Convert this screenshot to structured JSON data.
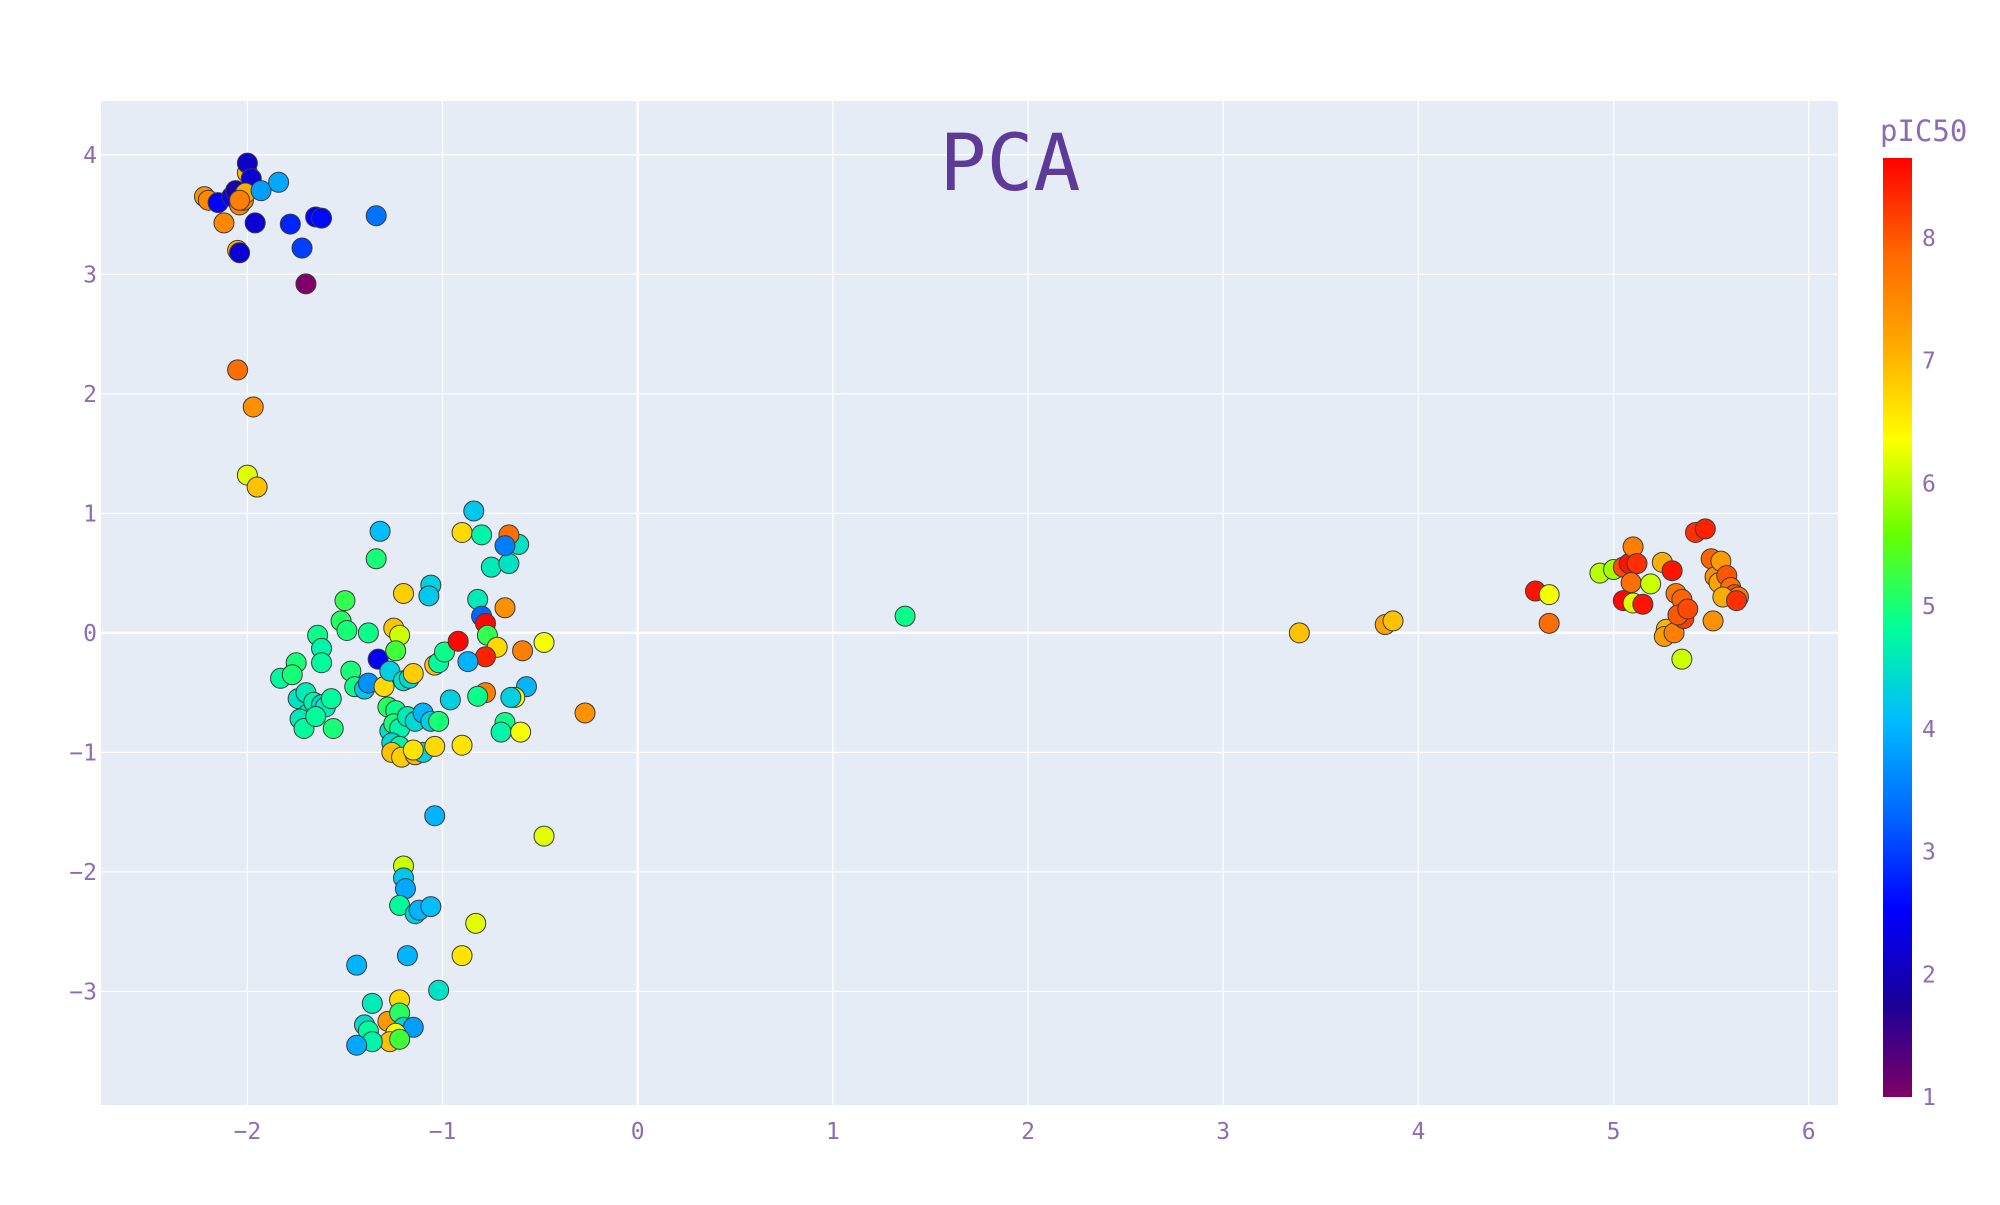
{
  "chart_data": {
    "type": "scatter",
    "title": "PCA",
    "xlabel": "",
    "ylabel": "",
    "xlim": [
      -2.75,
      6.15
    ],
    "ylim": [
      -3.95,
      4.45
    ],
    "x_ticks": [
      -2,
      -1,
      0,
      1,
      2,
      3,
      4,
      5,
      6
    ],
    "x_tick_labels": [
      "−2",
      "−1",
      "0",
      "1",
      "2",
      "3",
      "4",
      "5",
      "6"
    ],
    "y_ticks": [
      -3,
      -2,
      -1,
      0,
      1,
      2,
      3,
      4
    ],
    "y_tick_labels": [
      "−3",
      "−2",
      "−1",
      "0",
      "1",
      "2",
      "3",
      "4"
    ],
    "grid": true,
    "colorbar": {
      "title": "pIC50",
      "range": [
        1,
        8.65
      ],
      "ticks": [
        1,
        2,
        3,
        4,
        5,
        6,
        7,
        8
      ],
      "tick_labels": [
        "1",
        "2",
        "3",
        "4",
        "5",
        "6",
        "7",
        "8"
      ],
      "colorscale": [
        "#7f0066",
        "#1a0099",
        "#0000ff",
        "#0066ff",
        "#00bbff",
        "#00ff99",
        "#66ff00",
        "#ffff00",
        "#ffaa00",
        "#ff6600",
        "#ff0000"
      ]
    },
    "series": [
      {
        "points": [
          {
            "x": -2.22,
            "y": 3.65,
            "c": 7.4
          },
          {
            "x": -2.2,
            "y": 3.62,
            "c": 7.5
          },
          {
            "x": -2.15,
            "y": 3.6,
            "c": 2.5
          },
          {
            "x": -2.12,
            "y": 3.43,
            "c": 7.5
          },
          {
            "x": -2.08,
            "y": 3.65,
            "c": 2.3
          },
          {
            "x": -2.06,
            "y": 3.7,
            "c": 1.9
          },
          {
            "x": -2.04,
            "y": 3.58,
            "c": 7.6
          },
          {
            "x": -2.02,
            "y": 3.62,
            "c": 7.5
          },
          {
            "x": -2.0,
            "y": 3.85,
            "c": 7.0
          },
          {
            "x": -2.0,
            "y": 3.93,
            "c": 2.1
          },
          {
            "x": -1.98,
            "y": 3.8,
            "c": 2.2
          },
          {
            "x": -2.01,
            "y": 3.68,
            "c": 7.1
          },
          {
            "x": -1.96,
            "y": 3.43,
            "c": 2.2
          },
          {
            "x": -1.93,
            "y": 3.7,
            "c": 3.8
          },
          {
            "x": -1.84,
            "y": 3.77,
            "c": 3.9
          },
          {
            "x": -1.78,
            "y": 3.42,
            "c": 2.8
          },
          {
            "x": -1.72,
            "y": 3.22,
            "c": 3.0
          },
          {
            "x": -1.65,
            "y": 3.48,
            "c": 2.5
          },
          {
            "x": -1.62,
            "y": 3.47,
            "c": 2.6
          },
          {
            "x": -2.05,
            "y": 3.2,
            "c": 7.1
          },
          {
            "x": -2.04,
            "y": 3.18,
            "c": 2.2
          },
          {
            "x": -1.34,
            "y": 3.49,
            "c": 3.4
          },
          {
            "x": -1.7,
            "y": 2.92,
            "c": 1.0
          },
          {
            "x": -2.04,
            "y": 3.62,
            "c": 7.6
          },
          {
            "x": -2.05,
            "y": 2.2,
            "c": 7.8
          },
          {
            "x": -1.97,
            "y": 1.89,
            "c": 7.4
          },
          {
            "x": -2.0,
            "y": 1.32,
            "c": 6.2
          },
          {
            "x": -1.95,
            "y": 1.22,
            "c": 6.9
          },
          {
            "x": -1.32,
            "y": 0.85,
            "c": 4.1
          },
          {
            "x": -1.34,
            "y": 0.62,
            "c": 5.0
          },
          {
            "x": -1.5,
            "y": 0.27,
            "c": 5.2
          },
          {
            "x": -1.52,
            "y": 0.1,
            "c": 5.1
          },
          {
            "x": -1.49,
            "y": 0.02,
            "c": 5.0
          },
          {
            "x": -1.64,
            "y": -0.02,
            "c": 4.9
          },
          {
            "x": -1.38,
            "y": 0.0,
            "c": 4.9
          },
          {
            "x": -1.2,
            "y": 0.33,
            "c": 6.8
          },
          {
            "x": -1.06,
            "y": 0.4,
            "c": 4.3
          },
          {
            "x": -1.07,
            "y": 0.31,
            "c": 4.2
          },
          {
            "x": -1.62,
            "y": -0.13,
            "c": 4.7
          },
          {
            "x": -1.62,
            "y": -0.25,
            "c": 4.8
          },
          {
            "x": -1.75,
            "y": -0.25,
            "c": 5.0
          },
          {
            "x": -1.83,
            "y": -0.38,
            "c": 4.8
          },
          {
            "x": -1.77,
            "y": -0.35,
            "c": 5.0
          },
          {
            "x": -1.74,
            "y": -0.55,
            "c": 4.5
          },
          {
            "x": -1.7,
            "y": -0.5,
            "c": 4.6
          },
          {
            "x": -1.69,
            "y": -0.68,
            "c": 4.7
          },
          {
            "x": -1.73,
            "y": -0.72,
            "c": 4.6
          },
          {
            "x": -1.71,
            "y": -0.8,
            "c": 4.8
          },
          {
            "x": -1.66,
            "y": -0.58,
            "c": 4.7
          },
          {
            "x": -1.62,
            "y": -0.6,
            "c": 4.4
          },
          {
            "x": -1.6,
            "y": -0.62,
            "c": 4.6
          },
          {
            "x": -1.57,
            "y": -0.55,
            "c": 4.8
          },
          {
            "x": -1.56,
            "y": -0.8,
            "c": 5.0
          },
          {
            "x": -1.65,
            "y": -0.7,
            "c": 4.8
          },
          {
            "x": -1.47,
            "y": -0.32,
            "c": 5.0
          },
          {
            "x": -1.45,
            "y": -0.45,
            "c": 4.9
          },
          {
            "x": -1.4,
            "y": -0.47,
            "c": 4.2
          },
          {
            "x": -1.38,
            "y": -0.42,
            "c": 3.7
          },
          {
            "x": -1.33,
            "y": -0.22,
            "c": 2.4
          },
          {
            "x": -1.3,
            "y": -0.45,
            "c": 6.7
          },
          {
            "x": -1.27,
            "y": -0.32,
            "c": 4.3
          },
          {
            "x": -1.25,
            "y": 0.04,
            "c": 6.9
          },
          {
            "x": -1.22,
            "y": -0.02,
            "c": 6.1
          },
          {
            "x": -1.24,
            "y": -0.15,
            "c": 5.3
          },
          {
            "x": -1.2,
            "y": -0.4,
            "c": 4.5
          },
          {
            "x": -1.17,
            "y": -0.38,
            "c": 4.4
          },
          {
            "x": -1.15,
            "y": -0.34,
            "c": 6.8
          },
          {
            "x": -1.28,
            "y": -0.62,
            "c": 5.1
          },
          {
            "x": -1.24,
            "y": -0.65,
            "c": 4.9
          },
          {
            "x": -1.27,
            "y": -0.82,
            "c": 4.5
          },
          {
            "x": -1.25,
            "y": -0.76,
            "c": 5.0
          },
          {
            "x": -1.22,
            "y": -0.8,
            "c": 4.7
          },
          {
            "x": -1.18,
            "y": -0.7,
            "c": 4.6
          },
          {
            "x": -1.14,
            "y": -0.74,
            "c": 4.4
          },
          {
            "x": -1.1,
            "y": -0.67,
            "c": 4.0
          },
          {
            "x": -1.06,
            "y": -0.74,
            "c": 4.3
          },
          {
            "x": -1.02,
            "y": -0.74,
            "c": 5.0
          },
          {
            "x": -1.26,
            "y": -0.92,
            "c": 4.4
          },
          {
            "x": -1.22,
            "y": -0.95,
            "c": 4.7
          },
          {
            "x": -1.26,
            "y": -1.0,
            "c": 6.9
          },
          {
            "x": -1.21,
            "y": -1.04,
            "c": 6.8
          },
          {
            "x": -1.14,
            "y": -1.02,
            "c": 7.0
          },
          {
            "x": -1.1,
            "y": -1.0,
            "c": 4.3
          },
          {
            "x": -1.15,
            "y": -0.98,
            "c": 6.6
          },
          {
            "x": -1.04,
            "y": -0.95,
            "c": 6.7
          },
          {
            "x": -1.04,
            "y": -0.27,
            "c": 6.9
          },
          {
            "x": -1.02,
            "y": -0.25,
            "c": 4.8
          },
          {
            "x": -0.99,
            "y": -0.16,
            "c": 4.9
          },
          {
            "x": -0.96,
            "y": -0.56,
            "c": 4.3
          },
          {
            "x": -0.9,
            "y": 0.84,
            "c": 6.7
          },
          {
            "x": -0.84,
            "y": 1.02,
            "c": 4.2
          },
          {
            "x": -0.8,
            "y": 0.82,
            "c": 4.7
          },
          {
            "x": -0.75,
            "y": 0.55,
            "c": 4.6
          },
          {
            "x": -0.66,
            "y": 0.58,
            "c": 4.5
          },
          {
            "x": -0.61,
            "y": 0.74,
            "c": 4.5
          },
          {
            "x": -0.66,
            "y": 0.82,
            "c": 7.8
          },
          {
            "x": -0.68,
            "y": 0.73,
            "c": 3.5
          },
          {
            "x": -0.82,
            "y": 0.28,
            "c": 4.6
          },
          {
            "x": -0.8,
            "y": 0.14,
            "c": 3.3
          },
          {
            "x": -0.78,
            "y": 0.08,
            "c": 8.6
          },
          {
            "x": -0.92,
            "y": -0.07,
            "c": 8.6
          },
          {
            "x": -0.77,
            "y": -0.02,
            "c": 5.2
          },
          {
            "x": -0.72,
            "y": -0.12,
            "c": 6.7
          },
          {
            "x": -0.78,
            "y": -0.2,
            "c": 8.4
          },
          {
            "x": -0.87,
            "y": -0.24,
            "c": 4.0
          },
          {
            "x": -0.68,
            "y": 0.21,
            "c": 7.4
          },
          {
            "x": -0.59,
            "y": -0.15,
            "c": 7.6
          },
          {
            "x": -0.48,
            "y": -0.08,
            "c": 6.3
          },
          {
            "x": -0.57,
            "y": -0.45,
            "c": 4.0
          },
          {
            "x": -0.78,
            "y": -0.5,
            "c": 7.6
          },
          {
            "x": -0.82,
            "y": -0.53,
            "c": 4.9
          },
          {
            "x": -0.63,
            "y": -0.54,
            "c": 6.3
          },
          {
            "x": -0.65,
            "y": -0.54,
            "c": 4.3
          },
          {
            "x": -0.68,
            "y": -0.75,
            "c": 4.9
          },
          {
            "x": -0.7,
            "y": -0.83,
            "c": 4.7
          },
          {
            "x": -0.6,
            "y": -0.83,
            "c": 6.3
          },
          {
            "x": -0.9,
            "y": -0.94,
            "c": 6.6
          },
          {
            "x": -0.27,
            "y": -0.67,
            "c": 7.4
          },
          {
            "x": -1.04,
            "y": -1.53,
            "c": 4.0
          },
          {
            "x": -0.48,
            "y": -1.7,
            "c": 6.2
          },
          {
            "x": -1.2,
            "y": -1.95,
            "c": 6.1
          },
          {
            "x": -1.2,
            "y": -2.05,
            "c": 4.2
          },
          {
            "x": -1.19,
            "y": -2.14,
            "c": 3.9
          },
          {
            "x": -1.22,
            "y": -2.28,
            "c": 4.8
          },
          {
            "x": -1.14,
            "y": -2.35,
            "c": 4.3
          },
          {
            "x": -1.12,
            "y": -2.32,
            "c": 4.0
          },
          {
            "x": -1.06,
            "y": -2.29,
            "c": 4.1
          },
          {
            "x": -0.83,
            "y": -2.43,
            "c": 6.2
          },
          {
            "x": -1.18,
            "y": -2.7,
            "c": 4.0
          },
          {
            "x": -1.44,
            "y": -2.78,
            "c": 4.0
          },
          {
            "x": -0.9,
            "y": -2.7,
            "c": 6.6
          },
          {
            "x": -1.02,
            "y": -2.99,
            "c": 4.5
          },
          {
            "x": -1.22,
            "y": -3.07,
            "c": 6.7
          },
          {
            "x": -1.36,
            "y": -3.1,
            "c": 4.6
          },
          {
            "x": -1.4,
            "y": -3.28,
            "c": 4.4
          },
          {
            "x": -1.38,
            "y": -3.33,
            "c": 4.8
          },
          {
            "x": -1.28,
            "y": -3.25,
            "c": 7.3
          },
          {
            "x": -1.22,
            "y": -3.18,
            "c": 5.1
          },
          {
            "x": -1.2,
            "y": -3.3,
            "c": 4.4
          },
          {
            "x": -1.15,
            "y": -3.3,
            "c": 3.8
          },
          {
            "x": -1.24,
            "y": -3.35,
            "c": 6.4
          },
          {
            "x": -1.27,
            "y": -3.42,
            "c": 6.9
          },
          {
            "x": -1.22,
            "y": -3.4,
            "c": 5.3
          },
          {
            "x": -1.36,
            "y": -3.42,
            "c": 4.7
          },
          {
            "x": -1.44,
            "y": -3.45,
            "c": 3.9
          },
          {
            "x": 1.37,
            "y": 0.14,
            "c": 4.9
          },
          {
            "x": 3.39,
            "y": 0.0,
            "c": 6.9
          },
          {
            "x": 3.83,
            "y": 0.07,
            "c": 7.2
          },
          {
            "x": 3.87,
            "y": 0.1,
            "c": 6.9
          },
          {
            "x": 4.6,
            "y": 0.35,
            "c": 8.5
          },
          {
            "x": 4.67,
            "y": 0.32,
            "c": 6.3
          },
          {
            "x": 4.67,
            "y": 0.08,
            "c": 7.8
          },
          {
            "x": 4.93,
            "y": 0.5,
            "c": 6.0
          },
          {
            "x": 5.0,
            "y": 0.53,
            "c": 5.9
          },
          {
            "x": 5.05,
            "y": 0.55,
            "c": 8.1
          },
          {
            "x": 5.08,
            "y": 0.58,
            "c": 8.5
          },
          {
            "x": 5.1,
            "y": 0.72,
            "c": 7.6
          },
          {
            "x": 5.12,
            "y": 0.58,
            "c": 8.3
          },
          {
            "x": 5.09,
            "y": 0.42,
            "c": 7.8
          },
          {
            "x": 5.05,
            "y": 0.27,
            "c": 8.6
          },
          {
            "x": 5.1,
            "y": 0.25,
            "c": 6.2
          },
          {
            "x": 5.15,
            "y": 0.24,
            "c": 8.5
          },
          {
            "x": 5.19,
            "y": 0.41,
            "c": 6.1
          },
          {
            "x": 5.25,
            "y": 0.59,
            "c": 7.1
          },
          {
            "x": 5.3,
            "y": 0.52,
            "c": 8.5
          },
          {
            "x": 5.27,
            "y": 0.03,
            "c": 7.0
          },
          {
            "x": 5.26,
            "y": -0.03,
            "c": 7.3
          },
          {
            "x": 5.31,
            "y": 0.0,
            "c": 7.6
          },
          {
            "x": 5.32,
            "y": 0.33,
            "c": 7.7
          },
          {
            "x": 5.35,
            "y": 0.28,
            "c": 7.9
          },
          {
            "x": 5.36,
            "y": 0.12,
            "c": 8.2
          },
          {
            "x": 5.33,
            "y": 0.15,
            "c": 8.0
          },
          {
            "x": 5.38,
            "y": 0.2,
            "c": 8.1
          },
          {
            "x": 5.35,
            "y": -0.22,
            "c": 6.1
          },
          {
            "x": 5.42,
            "y": 0.84,
            "c": 8.3
          },
          {
            "x": 5.47,
            "y": 0.87,
            "c": 8.4
          },
          {
            "x": 5.5,
            "y": 0.62,
            "c": 7.9
          },
          {
            "x": 5.52,
            "y": 0.47,
            "c": 7.4
          },
          {
            "x": 5.55,
            "y": 0.6,
            "c": 7.3
          },
          {
            "x": 5.54,
            "y": 0.42,
            "c": 7.2
          },
          {
            "x": 5.58,
            "y": 0.48,
            "c": 8.0
          },
          {
            "x": 5.6,
            "y": 0.38,
            "c": 7.8
          },
          {
            "x": 5.62,
            "y": 0.32,
            "c": 8.1
          },
          {
            "x": 5.64,
            "y": 0.3,
            "c": 7.7
          },
          {
            "x": 5.56,
            "y": 0.3,
            "c": 7.1
          },
          {
            "x": 5.51,
            "y": 0.1,
            "c": 7.4
          },
          {
            "x": 5.63,
            "y": 0.27,
            "c": 8.3
          }
        ]
      }
    ]
  }
}
